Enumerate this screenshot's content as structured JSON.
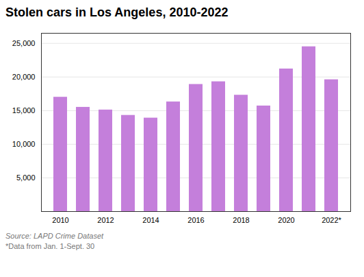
{
  "chart_data": {
    "type": "bar",
    "title": "Stolen cars in Los Angeles, 2010-2022",
    "categories": [
      "2010",
      null,
      "2012",
      null,
      "2014",
      null,
      "2016",
      null,
      "2018",
      null,
      "2020",
      null,
      "2022*"
    ],
    "values": [
      17000,
      15500,
      15100,
      14300,
      13900,
      16300,
      18900,
      19300,
      17300,
      15700,
      21200,
      24500,
      19600
    ],
    "color": "#c47fdb",
    "ylim": [
      0,
      26500
    ],
    "yticks": [
      {
        "value": 5000,
        "label": "5,000"
      },
      {
        "value": 10000,
        "label": "10,000"
      },
      {
        "value": 15000,
        "label": "15,000"
      },
      {
        "value": 20000,
        "label": "20,000"
      },
      {
        "value": 25000,
        "label": "25,000"
      }
    ],
    "grid": true,
    "annotations": [
      "Source: LAPD Crime Dataset",
      "*Data from Jan. 1-Sept. 30"
    ]
  }
}
